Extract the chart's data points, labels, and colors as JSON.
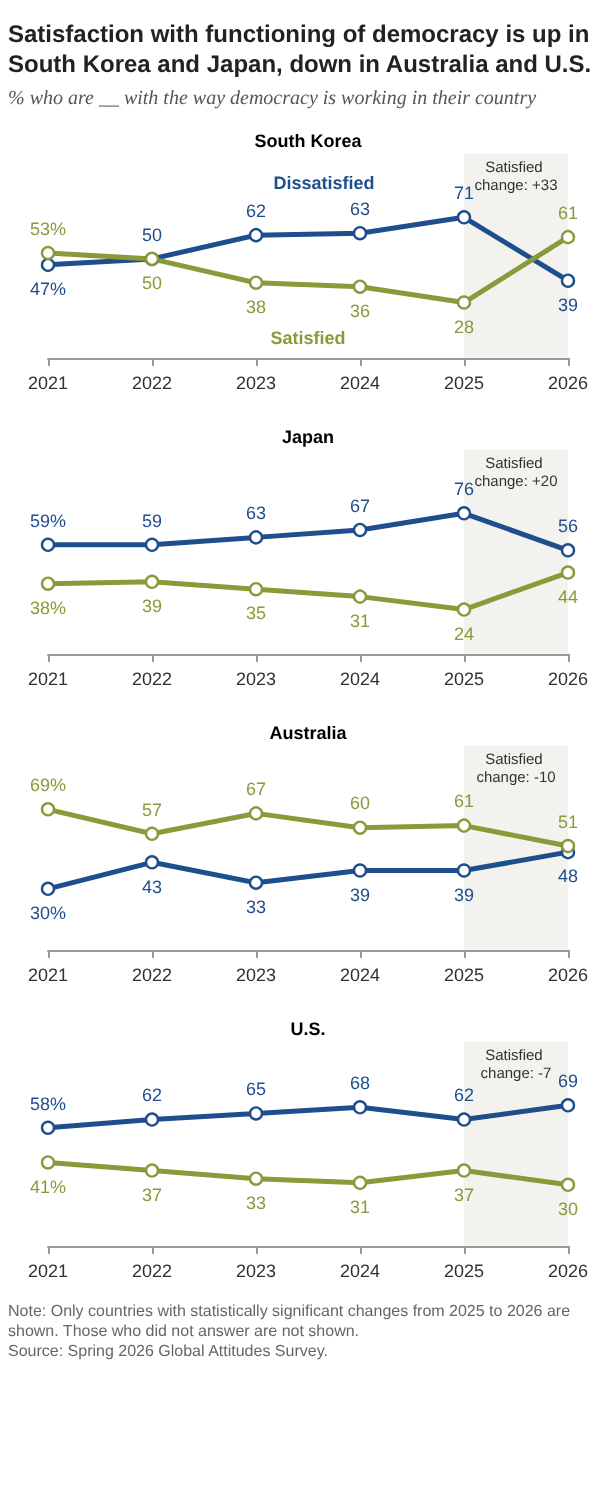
{
  "chart_data": [
    {
      "type": "other",
      "title": "Satisfaction with functioning of democracy is up in South Korea and Japan, down in Australia and U.S.",
      "subtitle": "% who are __ with the way democracy is working in their country"
    },
    {
      "type": "line",
      "title": "South Korea",
      "categories": [
        "2021",
        "2022",
        "2023",
        "2024",
        "2025",
        "2026"
      ],
      "marker": "circle",
      "line_style": "solid",
      "legend": false,
      "series": [
        {
          "name": "Dissatisfied",
          "color": "#1f4e8c",
          "values": [
            47,
            50,
            62,
            63,
            71,
            39
          ],
          "value_labels": [
            "47%",
            "50",
            "62",
            "63",
            "71",
            "39"
          ]
        },
        {
          "name": "Satisfied",
          "color": "#8a9a3b",
          "values": [
            53,
            50,
            38,
            36,
            28,
            61
          ],
          "value_labels": [
            "53%",
            "50",
            "38",
            "36",
            "28",
            "61"
          ]
        }
      ],
      "bands": [
        {
          "axis": "x",
          "from": "2025",
          "to": "2026",
          "label": "Satisfied change: +33",
          "color": "#f3f2ee"
        }
      ]
    },
    {
      "type": "line",
      "title": "Japan",
      "categories": [
        "2021",
        "2022",
        "2023",
        "2024",
        "2025",
        "2026"
      ],
      "marker": "circle",
      "line_style": "solid",
      "legend": false,
      "series": [
        {
          "color": "#1f4e8c",
          "values": [
            59,
            59,
            63,
            67,
            76,
            56
          ],
          "value_labels": [
            "59%",
            "59",
            "63",
            "67",
            "76",
            "56"
          ]
        },
        {
          "color": "#8a9a3b",
          "values": [
            38,
            39,
            35,
            31,
            24,
            44
          ],
          "value_labels": [
            "38%",
            "39",
            "35",
            "31",
            "24",
            "44"
          ]
        }
      ],
      "bands": [
        {
          "axis": "x",
          "from": "2025",
          "to": "2026",
          "label": "Satisfied change: +20",
          "color": "#f3f2ee"
        }
      ]
    },
    {
      "type": "line",
      "title": "Australia",
      "categories": [
        "2021",
        "2022",
        "2023",
        "2024",
        "2025",
        "2026"
      ],
      "marker": "circle",
      "line_style": "solid",
      "legend": false,
      "series": [
        {
          "color": "#1f4e8c",
          "values": [
            30,
            43,
            33,
            39,
            39,
            48
          ],
          "value_labels": [
            "30%",
            "43",
            "33",
            "39",
            "39",
            "48"
          ]
        },
        {
          "color": "#8a9a3b",
          "values": [
            69,
            57,
            67,
            60,
            61,
            51
          ],
          "value_labels": [
            "69%",
            "57",
            "67",
            "60",
            "61",
            "51"
          ]
        }
      ],
      "bands": [
        {
          "axis": "x",
          "from": "2025",
          "to": "2026",
          "label": "Satisfied change: -10",
          "color": "#f3f2ee"
        }
      ]
    },
    {
      "type": "line",
      "title": "U.S.",
      "categories": [
        "2021",
        "2022",
        "2023",
        "2024",
        "2025",
        "2026"
      ],
      "marker": "circle",
      "line_style": "solid",
      "legend": false,
      "series": [
        {
          "color": "#1f4e8c",
          "values": [
            58,
            62,
            65,
            68,
            62,
            69
          ],
          "value_labels": [
            "58%",
            "62",
            "65",
            "68",
            "62",
            "69"
          ]
        },
        {
          "color": "#8a9a3b",
          "values": [
            41,
            37,
            33,
            31,
            37,
            30
          ],
          "value_labels": [
            "41%",
            "37",
            "33",
            "31",
            "37",
            "30"
          ]
        }
      ],
      "bands": [
        {
          "axis": "x",
          "from": "2025",
          "to": "2026",
          "label": "Satisfied change: -7",
          "color": "#f3f2ee"
        }
      ],
      "annotations": [
        "Note: Only countries with statistically significant changes from 2025 to 2026 are shown. Those who did not answer are not shown.",
        "Source: Spring 2026 Global Attitudes Survey."
      ]
    }
  ]
}
